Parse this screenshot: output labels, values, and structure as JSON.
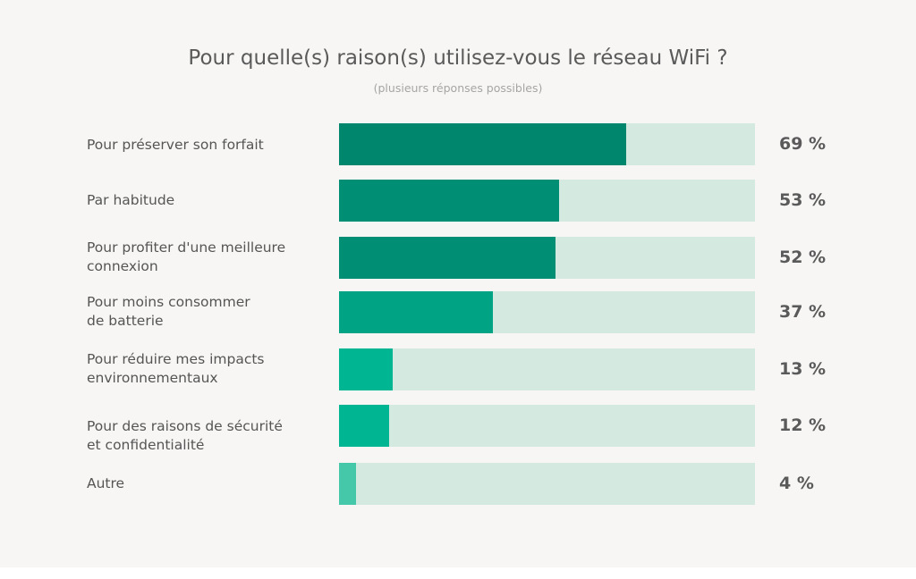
{
  "chart_data": {
    "type": "bar",
    "orientation": "horizontal",
    "title": "Pour quelle(s) raison(s) utilisez-vous le réseau WiFi ?",
    "subtitle": "(plusieurs réponses possibles)",
    "categories": [
      "Pour préserver son forfait",
      "Par habitude",
      "Pour profiter d'une meilleure\nconnexion",
      "Pour moins consommer\nde batterie",
      "Pour réduire mes impacts\nenvironnementaux",
      "Pour des raisons de sécurité\net confidentialité",
      "Autre"
    ],
    "values": [
      69,
      53,
      52,
      37,
      13,
      12,
      4
    ],
    "value_labels": [
      "69 %",
      "53 %",
      "52 %",
      "37 %",
      "13 %",
      "12 %",
      "4 %"
    ],
    "xlim": [
      0,
      100
    ],
    "grid": false,
    "legend": "none",
    "colors": {
      "track": "#d4e9e0",
      "fills": [
        "#00866c",
        "#008f74",
        "#008f74",
        "#00a484",
        "#00b592",
        "#00b592",
        "#45c7aa"
      ]
    }
  }
}
